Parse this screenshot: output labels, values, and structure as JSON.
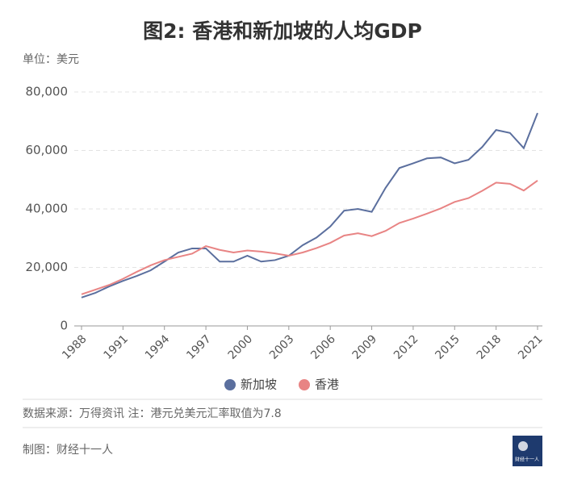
{
  "chart_data": {
    "type": "line",
    "title": "图2: 香港和新加坡的人均GDP",
    "y_label": "单位：美元",
    "source": "数据来源：万得资讯 注：港元兑美元汇率取值为7.8",
    "credit": "制图：财经十一人",
    "logo": "财经十一人",
    "x": [
      1988,
      1989,
      1990,
      1991,
      1992,
      1993,
      1994,
      1995,
      1996,
      1997,
      1998,
      1999,
      2000,
      2001,
      2002,
      2003,
      2004,
      2005,
      2006,
      2007,
      2008,
      2009,
      2010,
      2011,
      2012,
      2013,
      2014,
      2015,
      2016,
      2017,
      2018,
      2019,
      2020,
      2021
    ],
    "series": [
      {
        "name": "新加坡",
        "color": "#5b6f9e",
        "values": [
          9700,
          11300,
          13500,
          15400,
          17100,
          19000,
          22000,
          25100,
          26500,
          26500,
          22000,
          22000,
          24000,
          22000,
          22500,
          24000,
          27600,
          30200,
          34000,
          39400,
          40000,
          39000,
          47200,
          54000,
          55600,
          57300,
          57600,
          55600,
          56800,
          61200,
          67000,
          66000,
          60800,
          72800
        ]
      },
      {
        "name": "香港",
        "color": "#e88484",
        "values": [
          10800,
          12400,
          14000,
          16100,
          18500,
          20700,
          22500,
          23600,
          24700,
          27300,
          26000,
          25100,
          25800,
          25400,
          24800,
          24000,
          25100,
          26600,
          28400,
          30900,
          31700,
          30700,
          32500,
          35200,
          36700,
          38400,
          40200,
          42400,
          43700,
          46200,
          49000,
          48600,
          46300,
          49700
        ]
      }
    ],
    "xlim": [
      1988,
      2021
    ],
    "xticks": [
      1988,
      1991,
      1994,
      1997,
      2000,
      2003,
      2006,
      2009,
      2012,
      2015,
      2018,
      2021
    ],
    "ylim": [
      0,
      80000
    ],
    "yticks": [
      0,
      {
        "value": 20000,
        "label": "20,000"
      },
      {
        "value": 40000,
        "label": "40,000"
      },
      {
        "value": 60000,
        "label": "60,000"
      },
      {
        "value": 80000,
        "label": "80,000"
      }
    ],
    "grid": true,
    "legend": "bottom"
  }
}
